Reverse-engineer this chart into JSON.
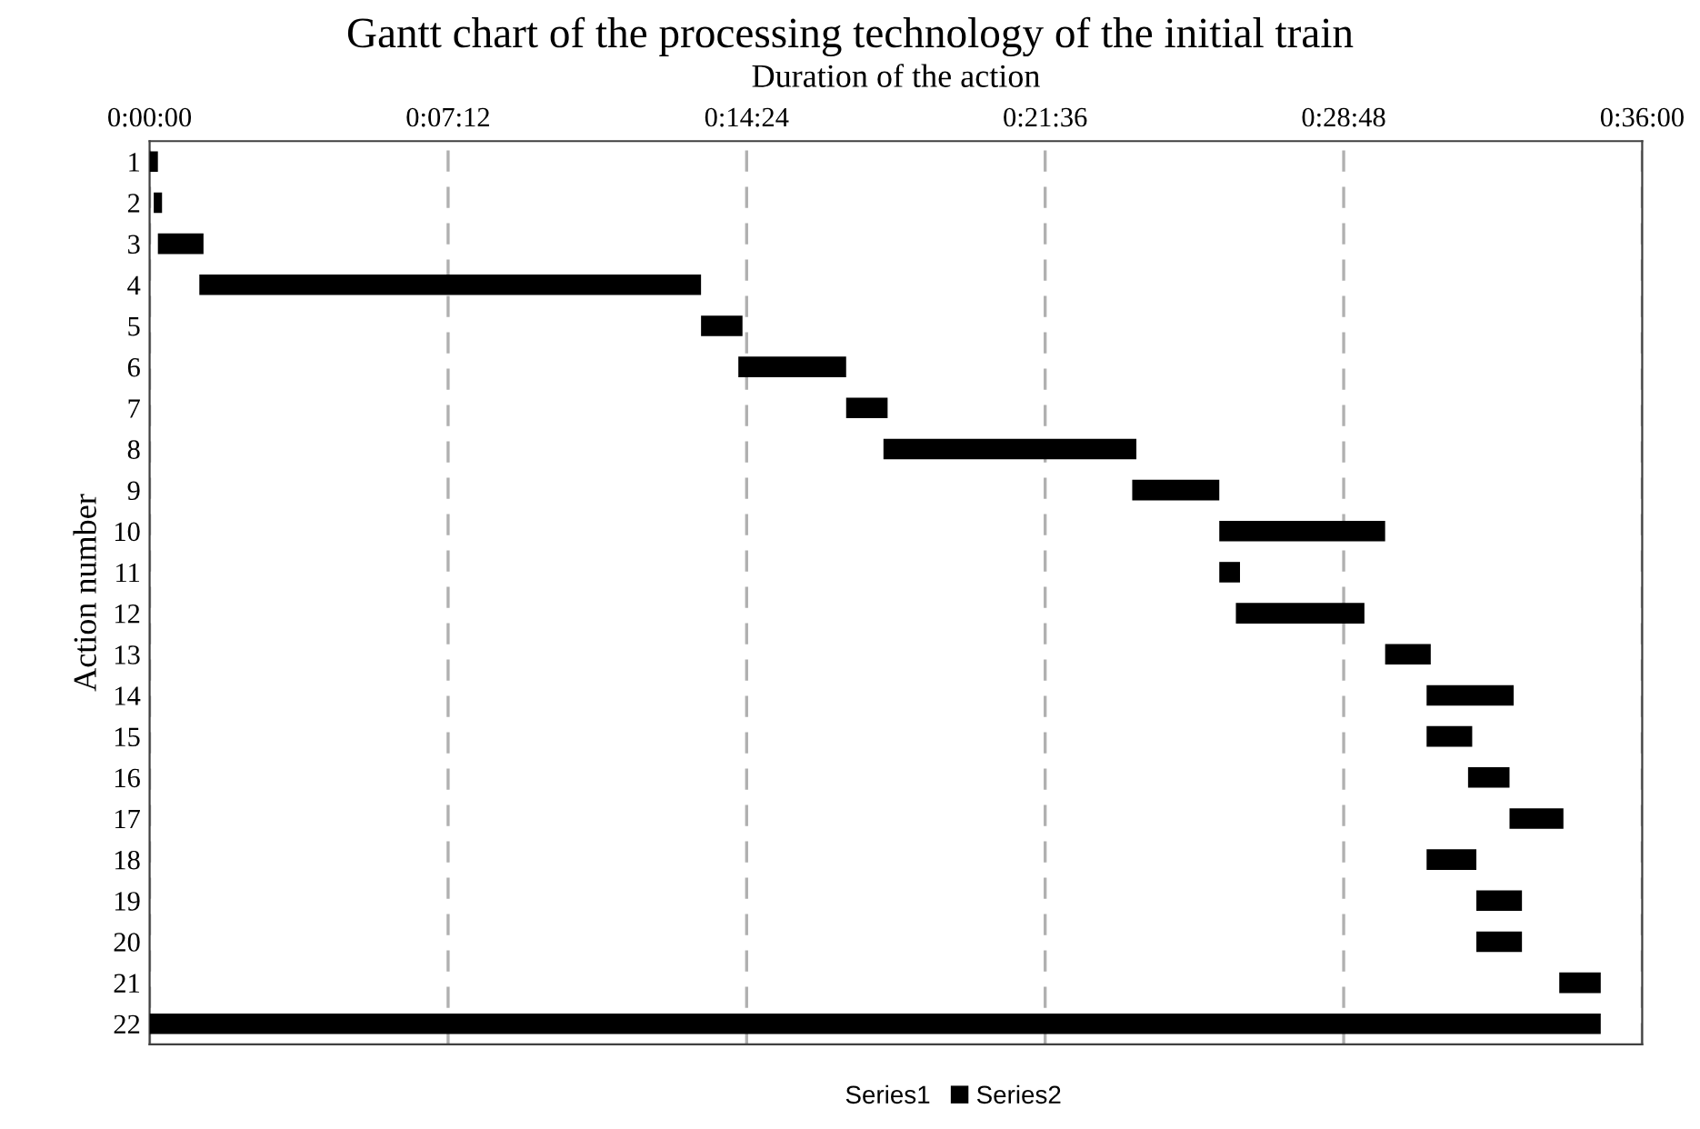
{
  "chart_data": {
    "type": "bar",
    "orientation": "horizontal",
    "title": "Gantt chart of the processing technology of the initial train",
    "xlabel": "Duration of the action",
    "ylabel": "Action number",
    "categories": [
      "1",
      "2",
      "3",
      "4",
      "5",
      "6",
      "7",
      "8",
      "9",
      "10",
      "11",
      "12",
      "13",
      "14",
      "15",
      "16",
      "17",
      "18",
      "19",
      "20",
      "21",
      "22"
    ],
    "series": [
      {
        "name": "Series2",
        "color": "#000000",
        "base": [
          0,
          0.1,
          0.2,
          1.2,
          13.3,
          14.2,
          16.8,
          17.7,
          23.7,
          25.8,
          25.8,
          26.2,
          29.8,
          30.8,
          30.8,
          31.8,
          32.8,
          30.8,
          32.0,
          32.0,
          34.0,
          0
        ],
        "values": [
          0.2,
          0.2,
          1.1,
          12.1,
          1.0,
          2.6,
          1.0,
          6.1,
          2.1,
          4.0,
          0.5,
          3.1,
          1.1,
          2.1,
          1.1,
          1.0,
          1.3,
          1.2,
          1.1,
          1.1,
          1.0,
          35.0
        ]
      }
    ],
    "annotations": [
      "Series1"
    ],
    "xlim": [
      0,
      36
    ],
    "xticks": [
      {
        "value": 0,
        "label": "0:00:00"
      },
      {
        "value": 7.2,
        "label": "0:07:12"
      },
      {
        "value": 14.4,
        "label": "0:14:24"
      },
      {
        "value": 21.6,
        "label": "0:21:36"
      },
      {
        "value": 28.8,
        "label": "0:28:48"
      },
      {
        "value": 36,
        "label": "0:36:00"
      }
    ],
    "grid": "x",
    "legend": "bottom"
  }
}
